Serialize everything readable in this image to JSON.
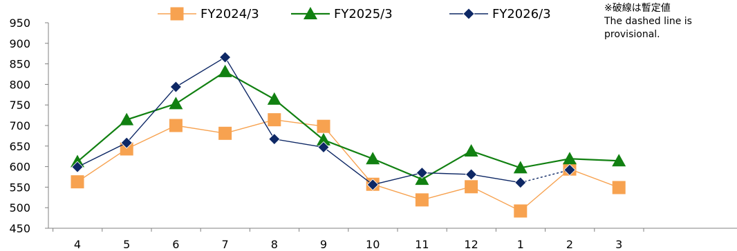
{
  "chart_data": {
    "type": "line",
    "categories": [
      "4",
      "5",
      "6",
      "7",
      "8",
      "9",
      "10",
      "11",
      "12",
      "1",
      "2",
      "3"
    ],
    "ylim": [
      450,
      950
    ],
    "yticks": [
      450,
      500,
      550,
      600,
      650,
      700,
      750,
      800,
      850,
      900,
      950
    ],
    "grid": false,
    "legend_position": "top",
    "series": [
      {
        "name": "FY2024/3",
        "color": "#F7A250",
        "marker": "square",
        "values": [
          563,
          643,
          700,
          681,
          714,
          698,
          557,
          519,
          551,
          492,
          594,
          549
        ]
      },
      {
        "name": "FY2025/3",
        "color": "#118011",
        "marker": "triangle",
        "values": [
          612,
          714,
          753,
          831,
          764,
          665,
          619,
          569,
          638,
          597,
          619,
          614
        ]
      },
      {
        "name": "FY2026/3",
        "color": "#0E2865",
        "marker": "diamond",
        "values": [
          599,
          658,
          794,
          866,
          667,
          647,
          556,
          585,
          581,
          561,
          592,
          null
        ],
        "provisional_from_index": 9
      }
    ],
    "note_lines": [
      "※破線は暫定値",
      "The dashed line is",
      "provisional."
    ]
  }
}
